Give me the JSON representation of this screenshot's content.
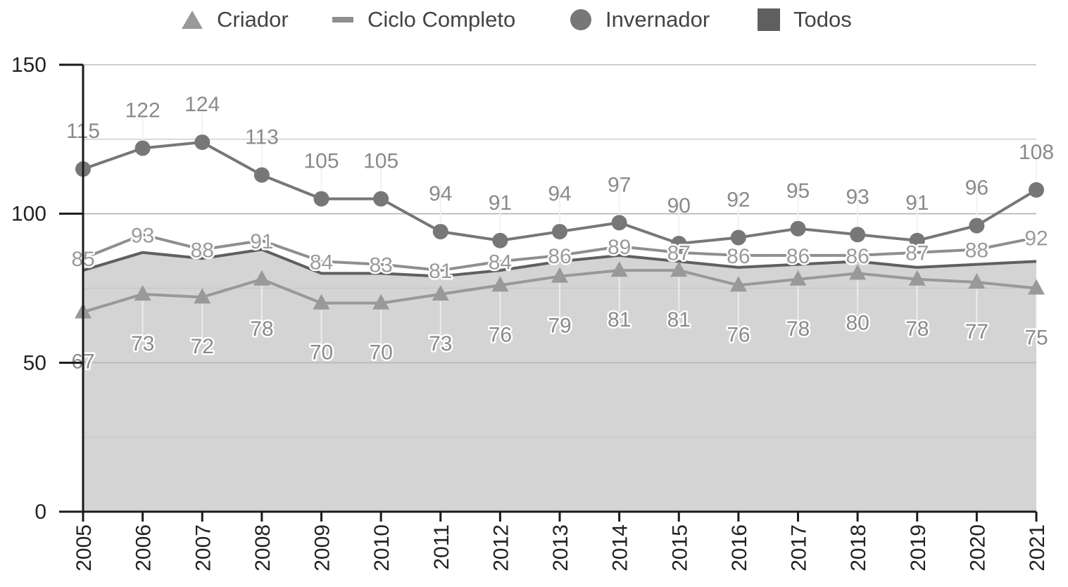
{
  "chart_data": {
    "type": "line",
    "title": "",
    "xlabel": "",
    "ylabel": "",
    "categories": [
      "2005",
      "2006",
      "2007",
      "2008",
      "2009",
      "2010",
      "2011",
      "2012",
      "2013",
      "2014",
      "2015",
      "2016",
      "2017",
      "2018",
      "2019",
      "2020",
      "2021"
    ],
    "ylim": [
      0,
      150
    ],
    "yticks": [
      0,
      50,
      100,
      150
    ],
    "grid": true,
    "legend_position": "top",
    "series": [
      {
        "name": "Criador",
        "marker": "triangle",
        "color": "#999999",
        "values": [
          67,
          73,
          72,
          78,
          70,
          70,
          73,
          76,
          79,
          81,
          81,
          76,
          78,
          80,
          78,
          77,
          75
        ]
      },
      {
        "name": "Ciclo Completo",
        "marker": "dash",
        "color": "#8f8f8f",
        "values": [
          85,
          93,
          88,
          91,
          84,
          83,
          81,
          84,
          86,
          89,
          87,
          86,
          86,
          86,
          87,
          88,
          92
        ]
      },
      {
        "name": "Invernador",
        "marker": "circle",
        "color": "#777777",
        "values": [
          115,
          122,
          124,
          113,
          105,
          105,
          94,
          91,
          94,
          97,
          90,
          92,
          95,
          93,
          91,
          96,
          108
        ]
      },
      {
        "name": "Todos",
        "marker": "square",
        "type": "area",
        "color": "#5f5f5f",
        "fill": "#d4d4d4",
        "values": [
          81,
          87,
          85,
          88,
          80,
          80,
          79,
          81,
          84,
          86,
          84,
          82,
          83,
          84,
          82,
          83,
          84
        ]
      }
    ]
  }
}
